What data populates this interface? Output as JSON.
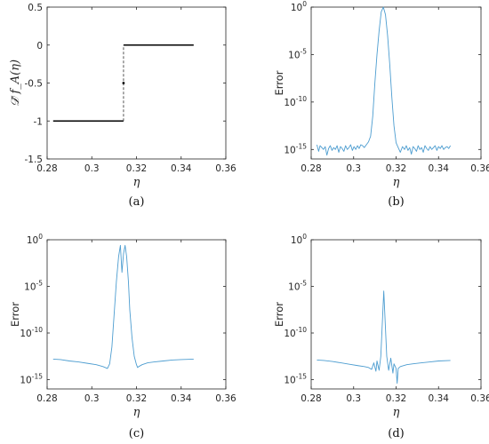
{
  "colors": {
    "series": "#4d9dd0",
    "step": "#000000",
    "axis": "#262626"
  },
  "chart_data": [
    {
      "type": "line",
      "panel_label": "(a)",
      "xlabel": "η",
      "ylabel": "𝒟̃ f_A(η)",
      "xlim": [
        0.28,
        0.36
      ],
      "ylim": [
        -1.5,
        0.5
      ],
      "yscale": "linear",
      "grid": false,
      "x_ticks": [
        "0.28",
        "0.3",
        "0.32",
        "0.34",
        "0.36"
      ],
      "y_ticks": [
        "-1.5",
        "-1",
        "-0.5",
        "0",
        "0.5"
      ],
      "series": [
        {
          "x": [
            0.2827,
            0.3142
          ],
          "y": [
            -1,
            -1
          ]
        },
        {
          "x": [
            0.3142,
            0.3456
          ],
          "y": [
            0,
            0
          ]
        },
        {
          "x": [
            0.3142,
            0.3142
          ],
          "y": [
            -1,
            0
          ],
          "dashed": true
        },
        {
          "x": [
            0.3142
          ],
          "y": [
            -0.5
          ],
          "marker": true
        }
      ]
    },
    {
      "type": "line",
      "panel_label": "(b)",
      "xlabel": "η",
      "ylabel": "Error",
      "xlim": [
        0.28,
        0.36
      ],
      "ylim_exp": [
        -16,
        0
      ],
      "yscale": "log",
      "grid": false,
      "x_ticks": [
        "0.28",
        "0.3",
        "0.32",
        "0.34",
        "0.36"
      ],
      "y_ticks": [
        {
          "base": "10",
          "exp": "0"
        },
        {
          "base": "10",
          "exp": "-5"
        },
        {
          "base": "10",
          "exp": "-10"
        },
        {
          "base": "10",
          "exp": "-15"
        }
      ],
      "series": [
        {
          "x": [
            0.2827,
            0.2835,
            0.2842,
            0.285,
            0.2858,
            0.2866,
            0.2874,
            0.2882,
            0.289,
            0.2898,
            0.2906,
            0.2914,
            0.2922,
            0.293,
            0.2938,
            0.2946,
            0.2954,
            0.2962,
            0.297,
            0.2978,
            0.2986,
            0.2994,
            0.3002,
            0.301,
            0.3018,
            0.3026,
            0.3034,
            0.3042,
            0.305,
            0.306,
            0.307,
            0.308,
            0.309,
            0.31,
            0.311,
            0.312,
            0.313,
            0.314,
            0.315,
            0.316,
            0.317,
            0.318,
            0.319,
            0.32,
            0.321,
            0.322,
            0.323,
            0.324,
            0.3248,
            0.3256,
            0.3264,
            0.3272,
            0.328,
            0.3288,
            0.3296,
            0.3304,
            0.3312,
            0.332,
            0.3328,
            0.3336,
            0.3344,
            0.3352,
            0.336,
            0.3368,
            0.3376,
            0.3384,
            0.3392,
            0.34,
            0.3408,
            0.3416,
            0.3424,
            0.3432,
            0.344,
            0.3448,
            0.3456
          ],
          "log10_y": [
            -14.5,
            -15.2,
            -14.6,
            -14.8,
            -15.0,
            -14.7,
            -15.6,
            -14.9,
            -14.6,
            -15.1,
            -14.8,
            -15.0,
            -14.6,
            -15.3,
            -14.7,
            -14.9,
            -15.2,
            -14.6,
            -15.0,
            -14.8,
            -14.5,
            -15.1,
            -14.7,
            -15.0,
            -14.6,
            -14.9,
            -14.5,
            -14.6,
            -14.8,
            -14.5,
            -14.2,
            -13.6,
            -11.5,
            -8.0,
            -5.0,
            -2.5,
            -0.5,
            0.0,
            -0.8,
            -3.0,
            -6.0,
            -9.5,
            -12.5,
            -14.3,
            -14.8,
            -15.3,
            -14.7,
            -15.0,
            -14.6,
            -15.1,
            -14.8,
            -15.5,
            -14.7,
            -14.9,
            -15.2,
            -14.6,
            -15.0,
            -14.8,
            -15.3,
            -14.6,
            -14.9,
            -15.1,
            -14.7,
            -15.0,
            -14.8,
            -14.6,
            -15.1,
            -14.7,
            -14.9,
            -14.6,
            -15.0,
            -14.8,
            -14.7,
            -14.9,
            -14.6
          ]
        }
      ]
    },
    {
      "type": "line",
      "panel_label": "(c)",
      "xlabel": "η",
      "ylabel": "Error",
      "xlim": [
        0.28,
        0.36
      ],
      "ylim_exp": [
        -16,
        0
      ],
      "yscale": "log",
      "grid": false,
      "x_ticks": [
        "0.28",
        "0.3",
        "0.32",
        "0.34",
        "0.36"
      ],
      "y_ticks": [
        {
          "base": "10",
          "exp": "0"
        },
        {
          "base": "10",
          "exp": "-5"
        },
        {
          "base": "10",
          "exp": "-10"
        },
        {
          "base": "10",
          "exp": "-15"
        }
      ],
      "series": [
        {
          "x": [
            0.2827,
            0.286,
            0.29,
            0.294,
            0.298,
            0.302,
            0.305,
            0.307,
            0.308,
            0.309,
            0.31,
            0.311,
            0.312,
            0.3128,
            0.3135,
            0.3142,
            0.3149,
            0.3156,
            0.3164,
            0.317,
            0.318,
            0.319,
            0.32,
            0.3205,
            0.321,
            0.3225,
            0.325,
            0.328,
            0.332,
            0.336,
            0.34,
            0.3456
          ],
          "log10_y": [
            -12.8,
            -12.85,
            -13.0,
            -13.1,
            -13.25,
            -13.4,
            -13.6,
            -13.8,
            -13.3,
            -11.5,
            -8.0,
            -4.5,
            -1.8,
            -0.6,
            -3.5,
            -1.5,
            -0.6,
            -1.8,
            -4.5,
            -7.5,
            -10.5,
            -12.5,
            -13.4,
            -13.7,
            -13.6,
            -13.4,
            -13.2,
            -13.1,
            -13.0,
            -12.9,
            -12.85,
            -12.8
          ]
        }
      ]
    },
    {
      "type": "line",
      "panel_label": "(d)",
      "xlabel": "η",
      "ylabel": "Error",
      "xlim": [
        0.28,
        0.36
      ],
      "ylim_exp": [
        -16,
        0
      ],
      "yscale": "log",
      "grid": false,
      "x_ticks": [
        "0.28",
        "0.3",
        "0.32",
        "0.34",
        "0.36"
      ],
      "y_ticks": [
        {
          "base": "10",
          "exp": "0"
        },
        {
          "base": "10",
          "exp": "-5"
        },
        {
          "base": "10",
          "exp": "-10"
        },
        {
          "base": "10",
          "exp": "-15"
        }
      ],
      "series": [
        {
          "x": [
            0.2827,
            0.286,
            0.29,
            0.294,
            0.298,
            0.302,
            0.305,
            0.307,
            0.3085,
            0.3095,
            0.3105,
            0.311,
            0.312,
            0.3128,
            0.3135,
            0.3142,
            0.3149,
            0.3156,
            0.3165,
            0.3175,
            0.3185,
            0.319,
            0.32,
            0.3205,
            0.321,
            0.322,
            0.325,
            0.328,
            0.332,
            0.336,
            0.34,
            0.3456
          ],
          "log10_y": [
            -12.9,
            -12.95,
            -13.05,
            -13.2,
            -13.35,
            -13.5,
            -13.6,
            -13.7,
            -13.9,
            -13.2,
            -14.1,
            -13.0,
            -14.0,
            -12.5,
            -9.0,
            -5.5,
            -9.0,
            -12.5,
            -14.0,
            -12.7,
            -14.3,
            -13.3,
            -13.8,
            -15.4,
            -13.8,
            -13.6,
            -13.4,
            -13.3,
            -13.2,
            -13.1,
            -13.0,
            -12.95
          ]
        }
      ]
    }
  ]
}
